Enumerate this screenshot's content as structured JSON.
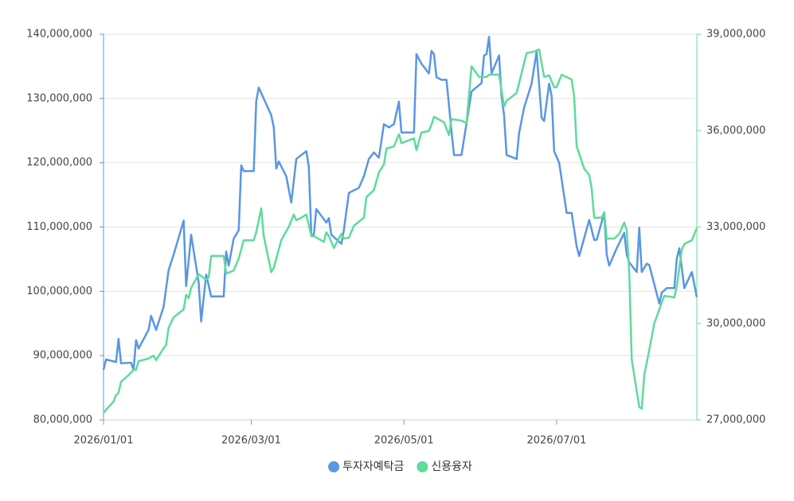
{
  "chart_data": {
    "type": "line",
    "xlim": [
      "2026/01/01",
      "2026/08/26"
    ],
    "xticks": [
      "2026/01/01",
      "2026/03/01",
      "2026/05/01",
      "2026/07/01"
    ],
    "ylim": [
      80000000,
      140000000
    ],
    "yticks": [
      {
        "value": 80000000,
        "label": "80,000,000"
      },
      {
        "value": 90000000,
        "label": "90,000,000"
      },
      {
        "value": 100000000,
        "label": "100,000,000"
      },
      {
        "value": 110000000,
        "label": "110,000,000"
      },
      {
        "value": 120000000,
        "label": "120,000,000"
      },
      {
        "value": 130000000,
        "label": "130,000,000"
      },
      {
        "value": 140000000,
        "label": "140,000,000"
      }
    ],
    "y2lim": [
      27000000,
      39000000
    ],
    "y2ticks": [
      {
        "value": 27000000,
        "label": "27,000,000"
      },
      {
        "value": 30000000,
        "label": "30,000,000"
      },
      {
        "value": 33000000,
        "label": "33,000,000"
      },
      {
        "value": 36000000,
        "label": "36,000,000"
      },
      {
        "value": 39000000,
        "label": "39,000,000"
      }
    ],
    "grid": true,
    "legend": "bottom",
    "series": [
      {
        "name": "투자자예탁금",
        "color": "#5a96e3",
        "axis": "y",
        "x": [
          "2026/01/01",
          "2026/01/02",
          "2026/01/06",
          "2026/01/07",
          "2026/01/08",
          "2026/01/12",
          "2026/01/13",
          "2026/01/14",
          "2026/01/15",
          "2026/01/19",
          "2026/01/20",
          "2026/01/22",
          "2026/01/25",
          "2026/01/27",
          "2026/01/29",
          "2026/02/02",
          "2026/02/03",
          "2026/02/05",
          "2026/02/08",
          "2026/02/09",
          "2026/02/11",
          "2026/02/13",
          "2026/02/18",
          "2026/02/19",
          "2026/02/20",
          "2026/02/22",
          "2026/02/24",
          "2026/02/25",
          "2026/02/26",
          "2026/03/02",
          "2026/03/03",
          "2026/03/04",
          "2026/03/09",
          "2026/03/10",
          "2026/03/11",
          "2026/03/12",
          "2026/03/15",
          "2026/03/17",
          "2026/03/19",
          "2026/03/23",
          "2026/03/24",
          "2026/03/25",
          "2026/03/26",
          "2026/03/27",
          "2026/03/31",
          "2026/04/01",
          "2026/04/02",
          "2026/04/06",
          "2026/04/07",
          "2026/04/09",
          "2026/04/13",
          "2026/04/15",
          "2026/04/17",
          "2026/04/19",
          "2026/04/21",
          "2026/04/23",
          "2026/04/25",
          "2026/04/27",
          "2026/04/29",
          "2026/04/30",
          "2026/05/05",
          "2026/05/06",
          "2026/05/08",
          "2026/05/11",
          "2026/05/12",
          "2026/05/13",
          "2026/05/14",
          "2026/05/16",
          "2026/05/18",
          "2026/05/20",
          "2026/05/21",
          "2026/05/24",
          "2026/05/28",
          "2026/06/01",
          "2026/06/02",
          "2026/06/03",
          "2026/06/04",
          "2026/06/05",
          "2026/06/08",
          "2026/06/09",
          "2026/06/10",
          "2026/06/11",
          "2026/06/15",
          "2026/06/16",
          "2026/06/18",
          "2026/06/21",
          "2026/06/23",
          "2026/06/25",
          "2026/06/26",
          "2026/06/28",
          "2026/06/29",
          "2026/06/30",
          "2026/07/02",
          "2026/07/05",
          "2026/07/07",
          "2026/07/09",
          "2026/07/10",
          "2026/07/14",
          "2026/07/16",
          "2026/07/17",
          "2026/07/20",
          "2026/07/21",
          "2026/07/22",
          "2026/07/25",
          "2026/07/28",
          "2026/07/29",
          "2026/07/30",
          "2026/08/02",
          "2026/08/03",
          "2026/08/04",
          "2026/08/06",
          "2026/08/07",
          "2026/08/11",
          "2026/08/12",
          "2026/08/14",
          "2026/08/17",
          "2026/08/18",
          "2026/08/19",
          "2026/08/21",
          "2026/08/24",
          "2026/08/26"
        ],
        "values": [
          87800000,
          89400000,
          89000000,
          92600000,
          88800000,
          88900000,
          87800000,
          92400000,
          91100000,
          94000000,
          96200000,
          94000000,
          97600000,
          103300000,
          105700000,
          111000000,
          100800000,
          108800000,
          101400000,
          95300000,
          102600000,
          99200000,
          99200000,
          106200000,
          104000000,
          108200000,
          109500000,
          119600000,
          118700000,
          118700000,
          129600000,
          131700000,
          127400000,
          125500000,
          119100000,
          120200000,
          117900000,
          113800000,
          120600000,
          121800000,
          119400000,
          108800000,
          108800000,
          112800000,
          110700000,
          111400000,
          108800000,
          107400000,
          109500000,
          115300000,
          116100000,
          117900000,
          120600000,
          121600000,
          120800000,
          126000000,
          125500000,
          126000000,
          129500000,
          124700000,
          124700000,
          136900000,
          135400000,
          133900000,
          137400000,
          136900000,
          133300000,
          132900000,
          132900000,
          124900000,
          121200000,
          121200000,
          131100000,
          132400000,
          136700000,
          136900000,
          139600000,
          133900000,
          136700000,
          130300000,
          127400000,
          121200000,
          120600000,
          124600000,
          128600000,
          132300000,
          137300000,
          127000000,
          126500000,
          132300000,
          130400000,
          121800000,
          120000000,
          112200000,
          112200000,
          107000000,
          105500000,
          111100000,
          108000000,
          108000000,
          112200000,
          105700000,
          104000000,
          106700000,
          109100000,
          105700000,
          104500000,
          103000000,
          109900000,
          103000000,
          104300000,
          104100000,
          98100000,
          99800000,
          100500000,
          100500000,
          105100000,
          106700000,
          100500000,
          103000000,
          99100000
        ]
      },
      {
        "name": "신용융자",
        "color": "#5ddb9a",
        "axis": "y2",
        "x": [
          "2026/01/01",
          "2026/01/03",
          "2026/01/05",
          "2026/01/06",
          "2026/01/07",
          "2026/01/08",
          "2026/01/11",
          "2026/01/13",
          "2026/01/14",
          "2026/01/15",
          "2026/01/19",
          "2026/01/21",
          "2026/01/22",
          "2026/01/25",
          "2026/01/26",
          "2026/01/27",
          "2026/01/29",
          "2026/02/02",
          "2026/02/03",
          "2026/02/04",
          "2026/02/05",
          "2026/02/08",
          "2026/02/09",
          "2026/02/11",
          "2026/02/12",
          "2026/02/13",
          "2026/02/18",
          "2026/02/19",
          "2026/02/22",
          "2026/02/24",
          "2026/02/26",
          "2026/03/02",
          "2026/03/03",
          "2026/03/05",
          "2026/03/06",
          "2026/03/09",
          "2026/03/10",
          "2026/03/13",
          "2026/03/16",
          "2026/03/18",
          "2026/03/19",
          "2026/03/21",
          "2026/03/23",
          "2026/03/25",
          "2026/03/26",
          "2026/03/30",
          "2026/03/31",
          "2026/04/01",
          "2026/04/03",
          "2026/04/06",
          "2026/04/07",
          "2026/04/09",
          "2026/04/11",
          "2026/04/15",
          "2026/04/16",
          "2026/04/19",
          "2026/04/21",
          "2026/04/23",
          "2026/04/24",
          "2026/04/27",
          "2026/04/29",
          "2026/04/30",
          "2026/05/05",
          "2026/05/06",
          "2026/05/08",
          "2026/05/11",
          "2026/05/12",
          "2026/05/13",
          "2026/05/17",
          "2026/05/19",
          "2026/05/20",
          "2026/05/24",
          "2026/05/26",
          "2026/05/28",
          "2026/05/31",
          "2026/06/03",
          "2026/06/04",
          "2026/06/08",
          "2026/06/10",
          "2026/06/11",
          "2026/06/15",
          "2026/06/17",
          "2026/06/19",
          "2026/06/22",
          "2026/06/24",
          "2026/06/26",
          "2026/06/28",
          "2026/06/30",
          "2026/07/01",
          "2026/07/03",
          "2026/07/07",
          "2026/07/08",
          "2026/07/09",
          "2026/07/12",
          "2026/07/14",
          "2026/07/15",
          "2026/07/16",
          "2026/07/19",
          "2026/07/20",
          "2026/07/21",
          "2026/07/24",
          "2026/07/26",
          "2026/07/28",
          "2026/07/29",
          "2026/07/30",
          "2026/07/31",
          "2026/08/02",
          "2026/08/03",
          "2026/08/04",
          "2026/08/05",
          "2026/08/07",
          "2026/08/09",
          "2026/08/12",
          "2026/08/13",
          "2026/08/17",
          "2026/08/18",
          "2026/08/20",
          "2026/08/21",
          "2026/08/24",
          "2026/08/26"
        ],
        "values": [
          27220000,
          27400000,
          27570000,
          27770000,
          27840000,
          28190000,
          28390000,
          28560000,
          28560000,
          28830000,
          28910000,
          29000000,
          28860000,
          29230000,
          29330000,
          29870000,
          30190000,
          30440000,
          30890000,
          30790000,
          31110000,
          31530000,
          31480000,
          31360000,
          31430000,
          32100000,
          32100000,
          31550000,
          31650000,
          32020000,
          32590000,
          32590000,
          32840000,
          33580000,
          32720000,
          31600000,
          31730000,
          32590000,
          33010000,
          33390000,
          33210000,
          33290000,
          33390000,
          32720000,
          32720000,
          32540000,
          32840000,
          32720000,
          32350000,
          32790000,
          32640000,
          32670000,
          33040000,
          33290000,
          33930000,
          34150000,
          34700000,
          34950000,
          35440000,
          35510000,
          35890000,
          35610000,
          35760000,
          35390000,
          35940000,
          35990000,
          36180000,
          36430000,
          36260000,
          35860000,
          36360000,
          36310000,
          36240000,
          38000000,
          37670000,
          37670000,
          37740000,
          37740000,
          36750000,
          36930000,
          37170000,
          37790000,
          38410000,
          38460000,
          38530000,
          37670000,
          37720000,
          37350000,
          37350000,
          37740000,
          37590000,
          37050000,
          35510000,
          34820000,
          34620000,
          34200000,
          33290000,
          33290000,
          33460000,
          32640000,
          32640000,
          32790000,
          33140000,
          32890000,
          31600000,
          28880000,
          27890000,
          27400000,
          27350000,
          28390000,
          29180000,
          30000000,
          30660000,
          30860000,
          30810000,
          31160000,
          32300000,
          32470000,
          32590000,
          32970000
        ]
      }
    ]
  }
}
